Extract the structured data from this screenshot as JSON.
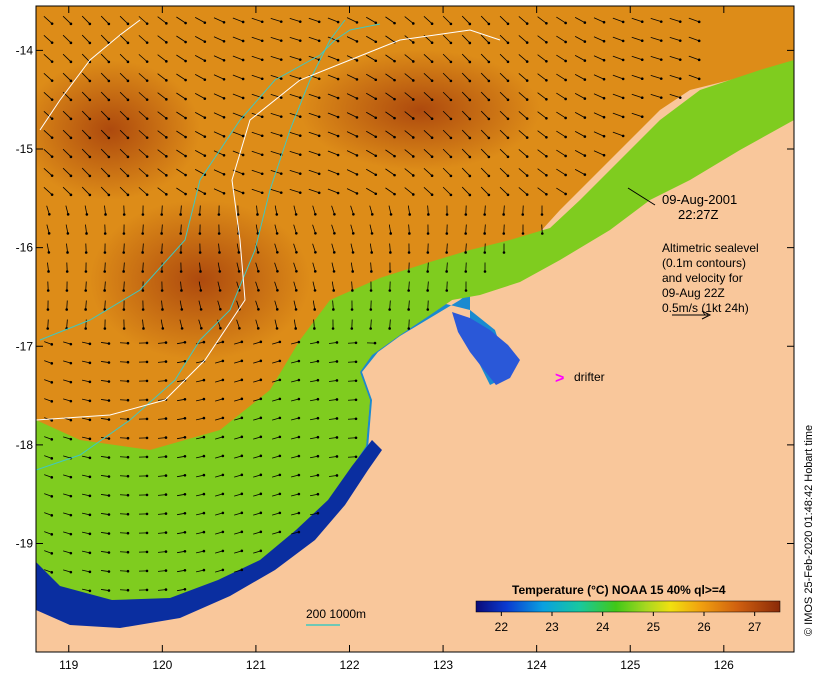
{
  "map": {
    "date": "09-Aug-2001",
    "time": "22:27Z",
    "x_ticks": [
      "119",
      "120",
      "121",
      "122",
      "123",
      "124",
      "125",
      "126"
    ],
    "y_ticks": [
      "-14",
      "-15",
      "-16",
      "-17",
      "-18",
      "-19"
    ],
    "lon_range": [
      118.65,
      126.75
    ],
    "lat_range": [
      -20.1,
      -13.55
    ],
    "altimetry_lines": [
      "Altimetric sealevel",
      "(0.1m contours)",
      "and velocity for",
      "09-Aug 22Z",
      "0.5m/s (1kt 24h)"
    ],
    "drifter_label": "drifter",
    "drifter_marker": ">",
    "depth_legend": "200  1000m",
    "credit": "© IMOS 25-Feb-2020 01:48:42 Hobart time"
  },
  "colorbar": {
    "title": "Temperature (°C) NOAA 15 40% ql>=4",
    "ticks": [
      "22",
      "23",
      "24",
      "25",
      "26",
      "27"
    ],
    "range": [
      21.5,
      27.5
    ]
  },
  "colors": {
    "land": "#f9c79b",
    "warm": "#b9520f",
    "mid": "#dd8c18",
    "cool": "#7fcc1f",
    "cold": "#0a2ea0",
    "drifter": "#ff00ff",
    "contour": "#40c8c0"
  }
}
